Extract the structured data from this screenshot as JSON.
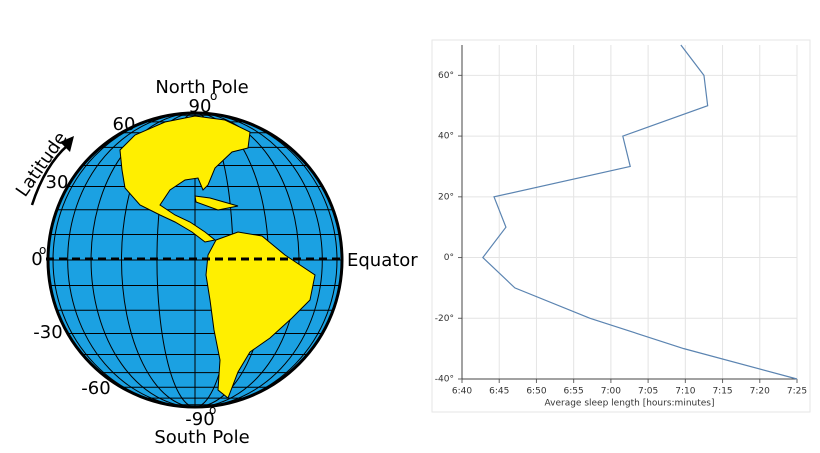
{
  "diagram": {
    "north_pole": "North Pole",
    "south_pole": "South Pole",
    "equator": "Equator",
    "latitude": "Latitude",
    "lat_90": "90",
    "lat_60": "60",
    "lat_30": "30",
    "lat_0": "0",
    "lat_m30": "-30",
    "lat_m60": "-60",
    "lat_m90": "-90",
    "degree": "o"
  },
  "chart_data": {
    "type": "line",
    "xlabel": "Average sleep length [hours:minutes]",
    "x": [
      429.4,
      432.5,
      433,
      421.6,
      422.6,
      404.3,
      405.9,
      402.8,
      407.1,
      417.2,
      429.8,
      445
    ],
    "values": [
      70,
      60,
      50,
      40,
      30,
      20,
      10,
      0,
      -10,
      -20,
      -30,
      -40
    ],
    "color": "#5b84b1",
    "xlim": [
      400,
      445
    ],
    "xticks": [
      {
        "value": 400,
        "label": "6:40"
      },
      {
        "value": 405,
        "label": "6:45"
      },
      {
        "value": 410,
        "label": "6:50"
      },
      {
        "value": 415,
        "label": "6:55"
      },
      {
        "value": 420,
        "label": "7:00"
      },
      {
        "value": 425,
        "label": "7:05"
      },
      {
        "value": 430,
        "label": "7:10"
      },
      {
        "value": 435,
        "label": "7:15"
      },
      {
        "value": 440,
        "label": "7:20"
      },
      {
        "value": 445,
        "label": "7:25"
      }
    ],
    "ylim": [
      -40,
      70
    ],
    "yticks": [
      {
        "value": -40,
        "label": "-40°"
      },
      {
        "value": -20,
        "label": "-20°"
      },
      {
        "value": 0,
        "label": "0°"
      },
      {
        "value": 20,
        "label": "20°"
      },
      {
        "value": 40,
        "label": "40°"
      },
      {
        "value": 60,
        "label": "60°"
      }
    ],
    "grid": true
  }
}
